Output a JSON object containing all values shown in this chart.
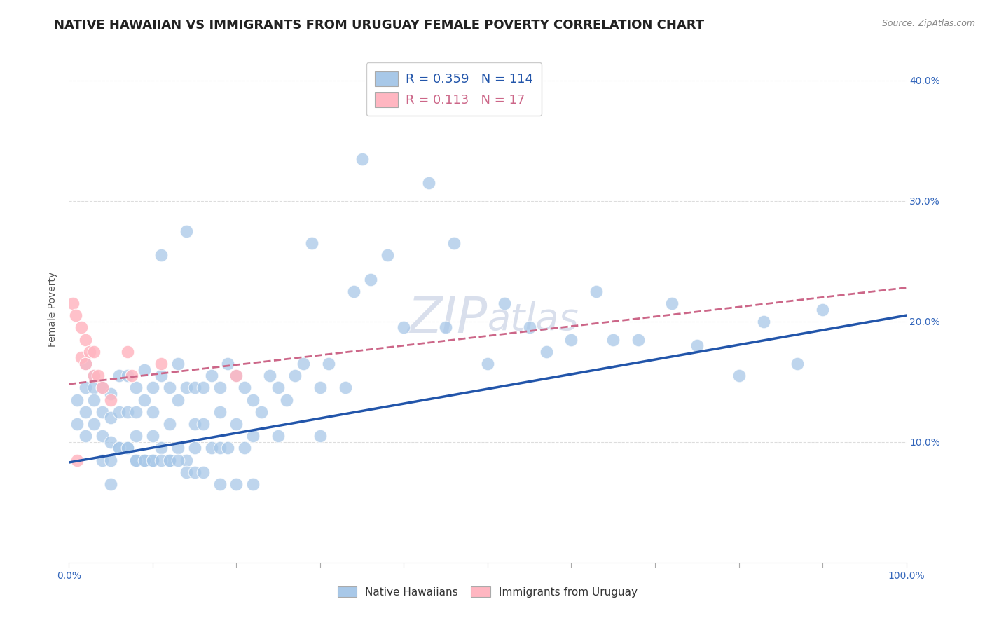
{
  "title": "NATIVE HAWAIIAN VS IMMIGRANTS FROM URUGUAY FEMALE POVERTY CORRELATION CHART",
  "source": "Source: ZipAtlas.com",
  "ylabel": "Female Poverty",
  "xlim": [
    0,
    1.0
  ],
  "ylim": [
    0,
    0.42
  ],
  "ytick_positions": [
    0.1,
    0.2,
    0.3,
    0.4
  ],
  "ytick_labels": [
    "10.0%",
    "20.0%",
    "30.0%",
    "40.0%"
  ],
  "blue_R": 0.359,
  "blue_N": 114,
  "pink_R": 0.113,
  "pink_N": 17,
  "blue_color": "#a8c8e8",
  "pink_color": "#ffb6c1",
  "blue_line_color": "#2255aa",
  "pink_line_color": "#cc6688",
  "legend_blue_label": "Native Hawaiians",
  "legend_pink_label": "Immigrants from Uruguay",
  "blue_scatter_x": [
    0.01,
    0.01,
    0.02,
    0.02,
    0.02,
    0.02,
    0.03,
    0.03,
    0.03,
    0.03,
    0.04,
    0.04,
    0.04,
    0.04,
    0.05,
    0.05,
    0.05,
    0.05,
    0.05,
    0.06,
    0.06,
    0.06,
    0.07,
    0.07,
    0.07,
    0.08,
    0.08,
    0.08,
    0.08,
    0.09,
    0.09,
    0.09,
    0.1,
    0.1,
    0.1,
    0.1,
    0.11,
    0.11,
    0.11,
    0.12,
    0.12,
    0.12,
    0.13,
    0.13,
    0.13,
    0.14,
    0.14,
    0.14,
    0.15,
    0.15,
    0.15,
    0.16,
    0.16,
    0.17,
    0.17,
    0.18,
    0.18,
    0.18,
    0.19,
    0.19,
    0.2,
    0.2,
    0.21,
    0.21,
    0.22,
    0.22,
    0.23,
    0.24,
    0.25,
    0.25,
    0.26,
    0.27,
    0.28,
    0.29,
    0.3,
    0.3,
    0.31,
    0.33,
    0.34,
    0.35,
    0.36,
    0.38,
    0.4,
    0.43,
    0.45,
    0.46,
    0.5,
    0.52,
    0.55,
    0.57,
    0.6,
    0.63,
    0.65,
    0.68,
    0.72,
    0.75,
    0.8,
    0.83,
    0.87,
    0.9,
    0.06,
    0.07,
    0.08,
    0.09,
    0.1,
    0.11,
    0.12,
    0.13,
    0.14,
    0.15,
    0.16,
    0.18,
    0.2,
    0.22
  ],
  "blue_scatter_y": [
    0.135,
    0.115,
    0.165,
    0.145,
    0.125,
    0.105,
    0.155,
    0.145,
    0.135,
    0.115,
    0.145,
    0.125,
    0.105,
    0.085,
    0.14,
    0.12,
    0.1,
    0.085,
    0.065,
    0.155,
    0.125,
    0.095,
    0.155,
    0.125,
    0.095,
    0.145,
    0.125,
    0.105,
    0.085,
    0.16,
    0.135,
    0.085,
    0.145,
    0.125,
    0.105,
    0.085,
    0.255,
    0.155,
    0.095,
    0.145,
    0.115,
    0.085,
    0.165,
    0.135,
    0.095,
    0.275,
    0.145,
    0.085,
    0.145,
    0.115,
    0.095,
    0.145,
    0.115,
    0.155,
    0.095,
    0.145,
    0.125,
    0.095,
    0.165,
    0.095,
    0.155,
    0.115,
    0.145,
    0.095,
    0.135,
    0.105,
    0.125,
    0.155,
    0.145,
    0.105,
    0.135,
    0.155,
    0.165,
    0.265,
    0.145,
    0.105,
    0.165,
    0.145,
    0.225,
    0.335,
    0.235,
    0.255,
    0.195,
    0.315,
    0.195,
    0.265,
    0.165,
    0.215,
    0.195,
    0.175,
    0.185,
    0.225,
    0.185,
    0.185,
    0.215,
    0.18,
    0.155,
    0.2,
    0.165,
    0.21,
    0.095,
    0.095,
    0.085,
    0.085,
    0.085,
    0.085,
    0.085,
    0.085,
    0.075,
    0.075,
    0.075,
    0.065,
    0.065,
    0.065
  ],
  "pink_scatter_x": [
    0.005,
    0.008,
    0.01,
    0.015,
    0.015,
    0.02,
    0.02,
    0.025,
    0.03,
    0.03,
    0.035,
    0.04,
    0.05,
    0.07,
    0.075,
    0.11,
    0.2
  ],
  "pink_scatter_y": [
    0.215,
    0.205,
    0.085,
    0.195,
    0.17,
    0.185,
    0.165,
    0.175,
    0.175,
    0.155,
    0.155,
    0.145,
    0.135,
    0.175,
    0.155,
    0.165,
    0.155
  ],
  "blue_trend_y_start": 0.083,
  "blue_trend_y_end": 0.205,
  "pink_trend_y_start": 0.148,
  "pink_trend_y_end": 0.228,
  "grid_color": "#dddddd",
  "bg_color": "#ffffff",
  "title_fontsize": 13,
  "axis_label_fontsize": 10,
  "tick_fontsize": 10,
  "watermark_color": "#d0d8e8",
  "watermark_fontsize": 52
}
